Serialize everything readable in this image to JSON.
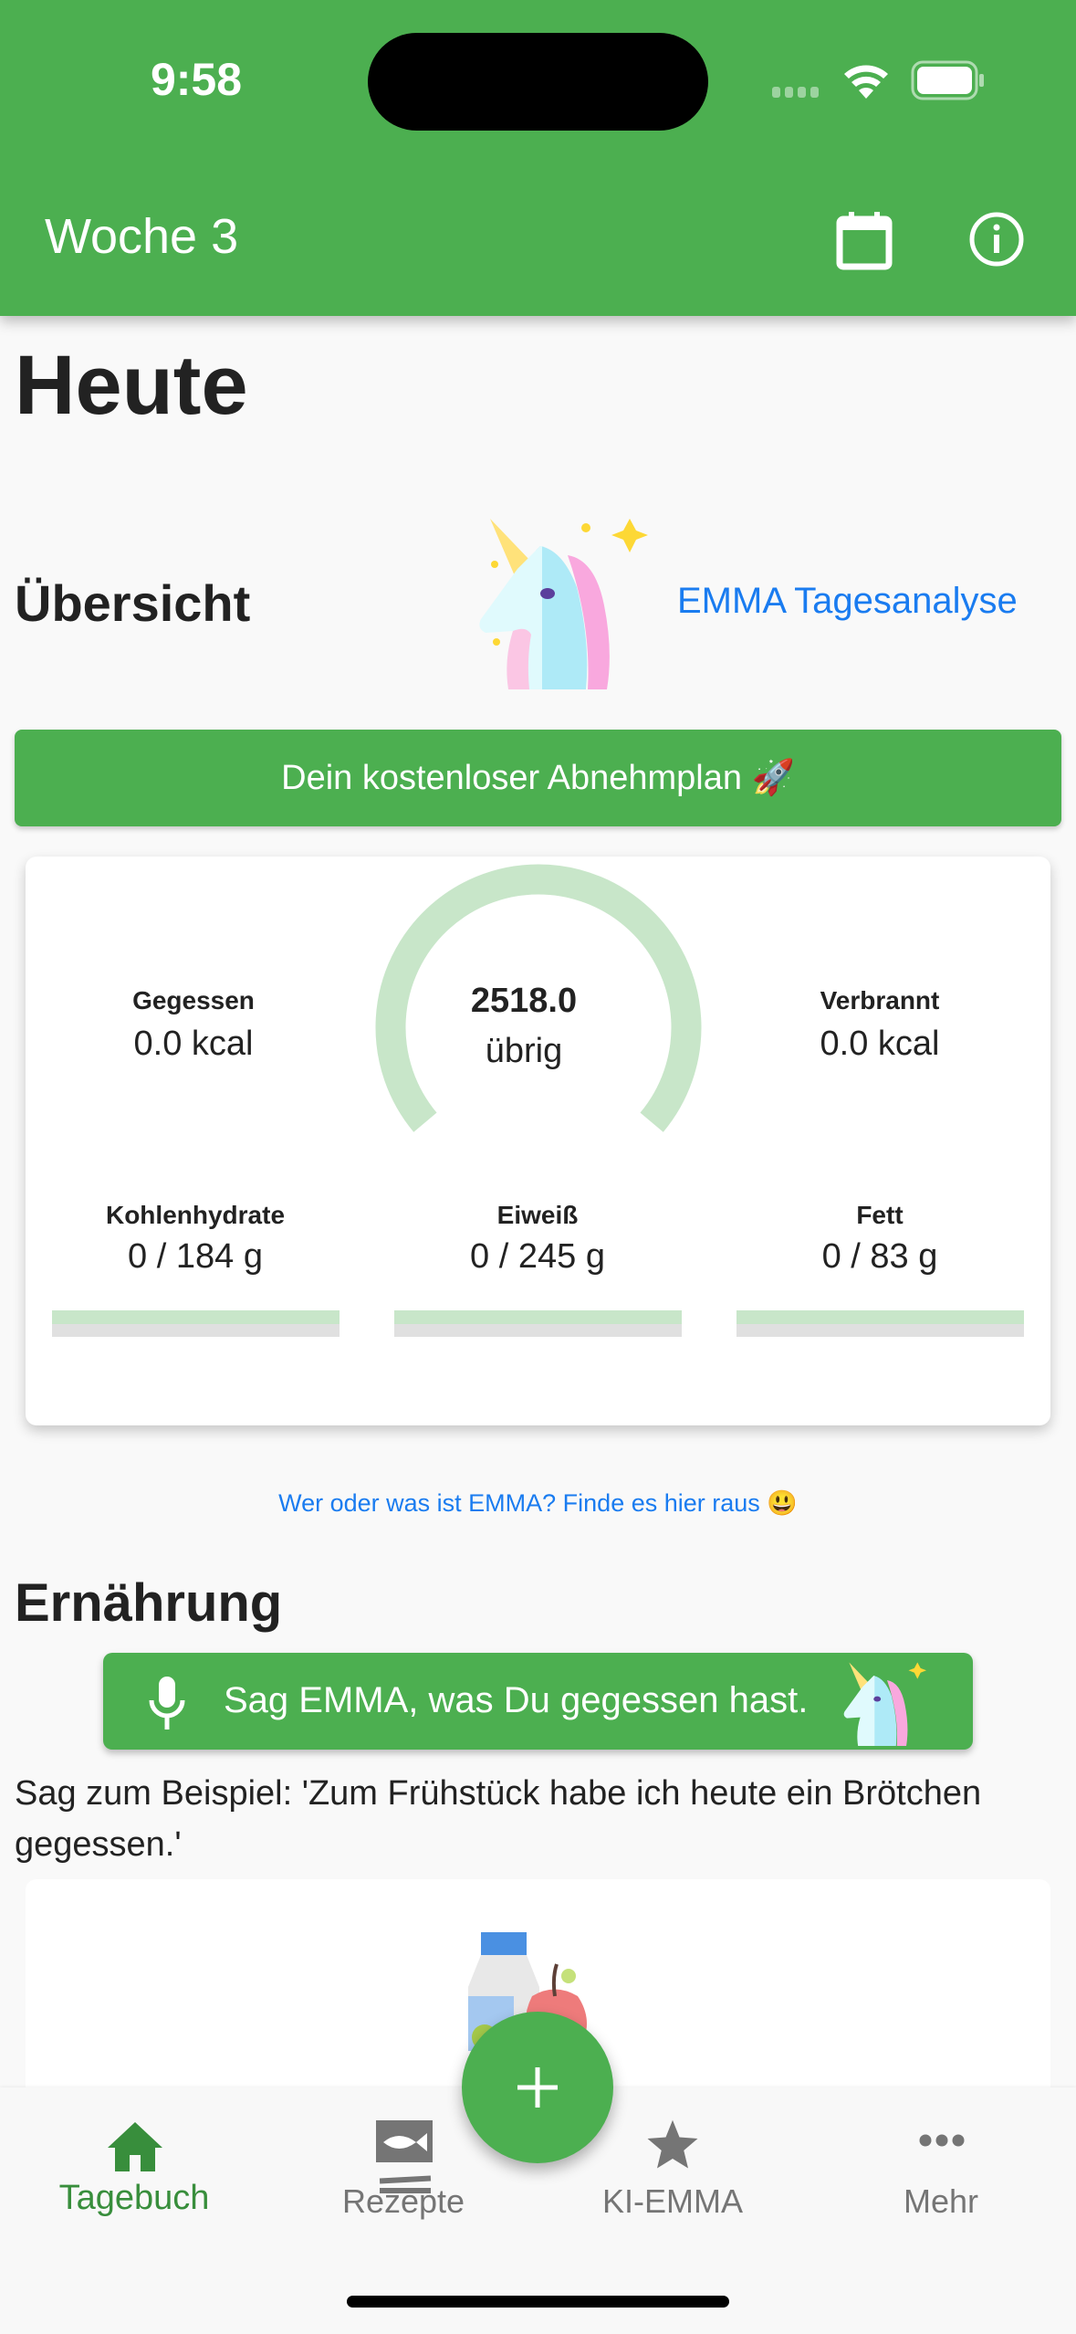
{
  "status_bar": {
    "time": "9:58"
  },
  "header": {
    "title": "Woche 3",
    "icons": [
      "calendar-icon",
      "info-icon"
    ]
  },
  "page": {
    "title": "Heute"
  },
  "overview": {
    "heading": "Übersicht",
    "analysis_link": "EMMA Tagesanalyse",
    "plan_button": "Dein kostenloser Abnehmplan 🚀"
  },
  "calories": {
    "eaten_label": "Gegessen",
    "eaten_value": "0.0 kcal",
    "remaining_value": "2518.0",
    "remaining_label": "übrig",
    "burned_label": "Verbrannt",
    "burned_value": "0.0 kcal",
    "progress": 0
  },
  "macros": [
    {
      "label": "Kohlenhydrate",
      "value": "0 / 184 g",
      "progress": 0
    },
    {
      "label": "Eiweiß",
      "value": "0 / 245 g",
      "progress": 0
    },
    {
      "label": "Fett",
      "value": "0 / 83 g",
      "progress": 0
    }
  ],
  "emma_info_link": "Wer oder was ist EMMA? Finde es hier raus 😃",
  "nutrition": {
    "heading": "Ernährung",
    "voice_button": "Sag EMMA, was Du gegessen hast.",
    "example": "Sag zum Beispiel: 'Zum Frühstück habe ich heute ein Brötchen gegessen.'"
  },
  "bottom_nav": {
    "items": [
      {
        "label": "Tagebuch",
        "active": true
      },
      {
        "label": "Rezepte"
      },
      {
        "label": "KI-EMMA"
      },
      {
        "label": "Mehr"
      }
    ]
  },
  "colors": {
    "primary": "#4caf50",
    "ring": "#c8e6c9",
    "link": "#1a7cf0",
    "nav_active": "#388e3c",
    "nav_inactive": "#757575"
  }
}
